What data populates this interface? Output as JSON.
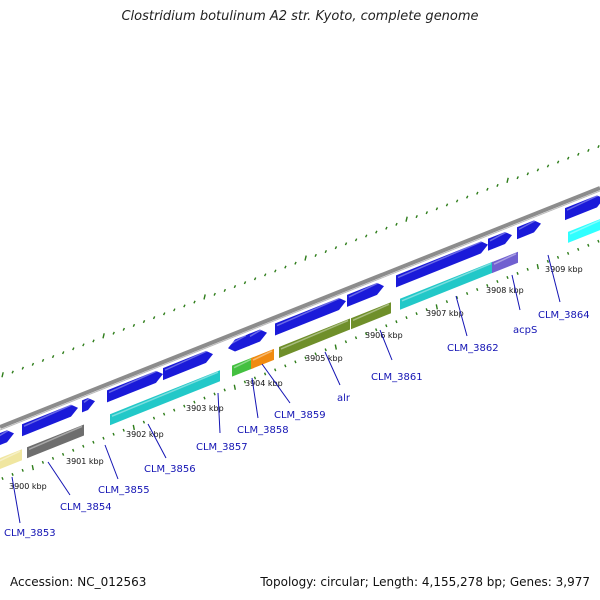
{
  "title": "Clostridium botulinum A2 str. Kyoto, complete genome",
  "footer": {
    "accession": "Accession: NC_012563",
    "stats": "Topology: circular; Length: 4,155,278 bp; Genes: 3,977"
  },
  "colors": {
    "backbone": "#8c8c8c",
    "ticks": "#2e7d1a",
    "gene_label": "#1414b4",
    "gene_blue": "#1a1ad9",
    "gene_cyan": "#22c8c8",
    "gene_olive": "#6f8f2a",
    "gene_gray": "#6e6e6e",
    "gene_yellow": "#f0e6a0",
    "gene_green": "#44c040",
    "gene_orange": "#f08a10",
    "gene_purple": "#7060d0",
    "gene_brightcyan": "#30ffff"
  },
  "kbp_ticks": [
    "3900 kbp",
    "3901 kbp",
    "3902 kbp",
    "3903 kbp",
    "3904 kbp",
    "3905 kbp",
    "3906 kbp",
    "3907 kbp",
    "3908 kbp",
    "3909 kbp"
  ],
  "genes": [
    {
      "label": "CLM_3853",
      "color": "gene_yellow"
    },
    {
      "label": "CLM_3854",
      "color": "gene_gray"
    },
    {
      "label": "CLM_3855",
      "color": "gene_blue"
    },
    {
      "label": "CLM_3856",
      "color": "gene_cyan"
    },
    {
      "label": "CLM_3857",
      "color": "gene_blue"
    },
    {
      "label": "CLM_3858",
      "color": "gene_green"
    },
    {
      "label": "CLM_3859",
      "color": "gene_orange"
    },
    {
      "label": "alr",
      "color": "gene_olive"
    },
    {
      "label": "CLM_3861",
      "color": "gene_olive"
    },
    {
      "label": "CLM_3862",
      "color": "gene_cyan"
    },
    {
      "label": "acpS",
      "color": "gene_purple"
    },
    {
      "label": "CLM_3864",
      "color": "gene_brightcyan"
    }
  ]
}
